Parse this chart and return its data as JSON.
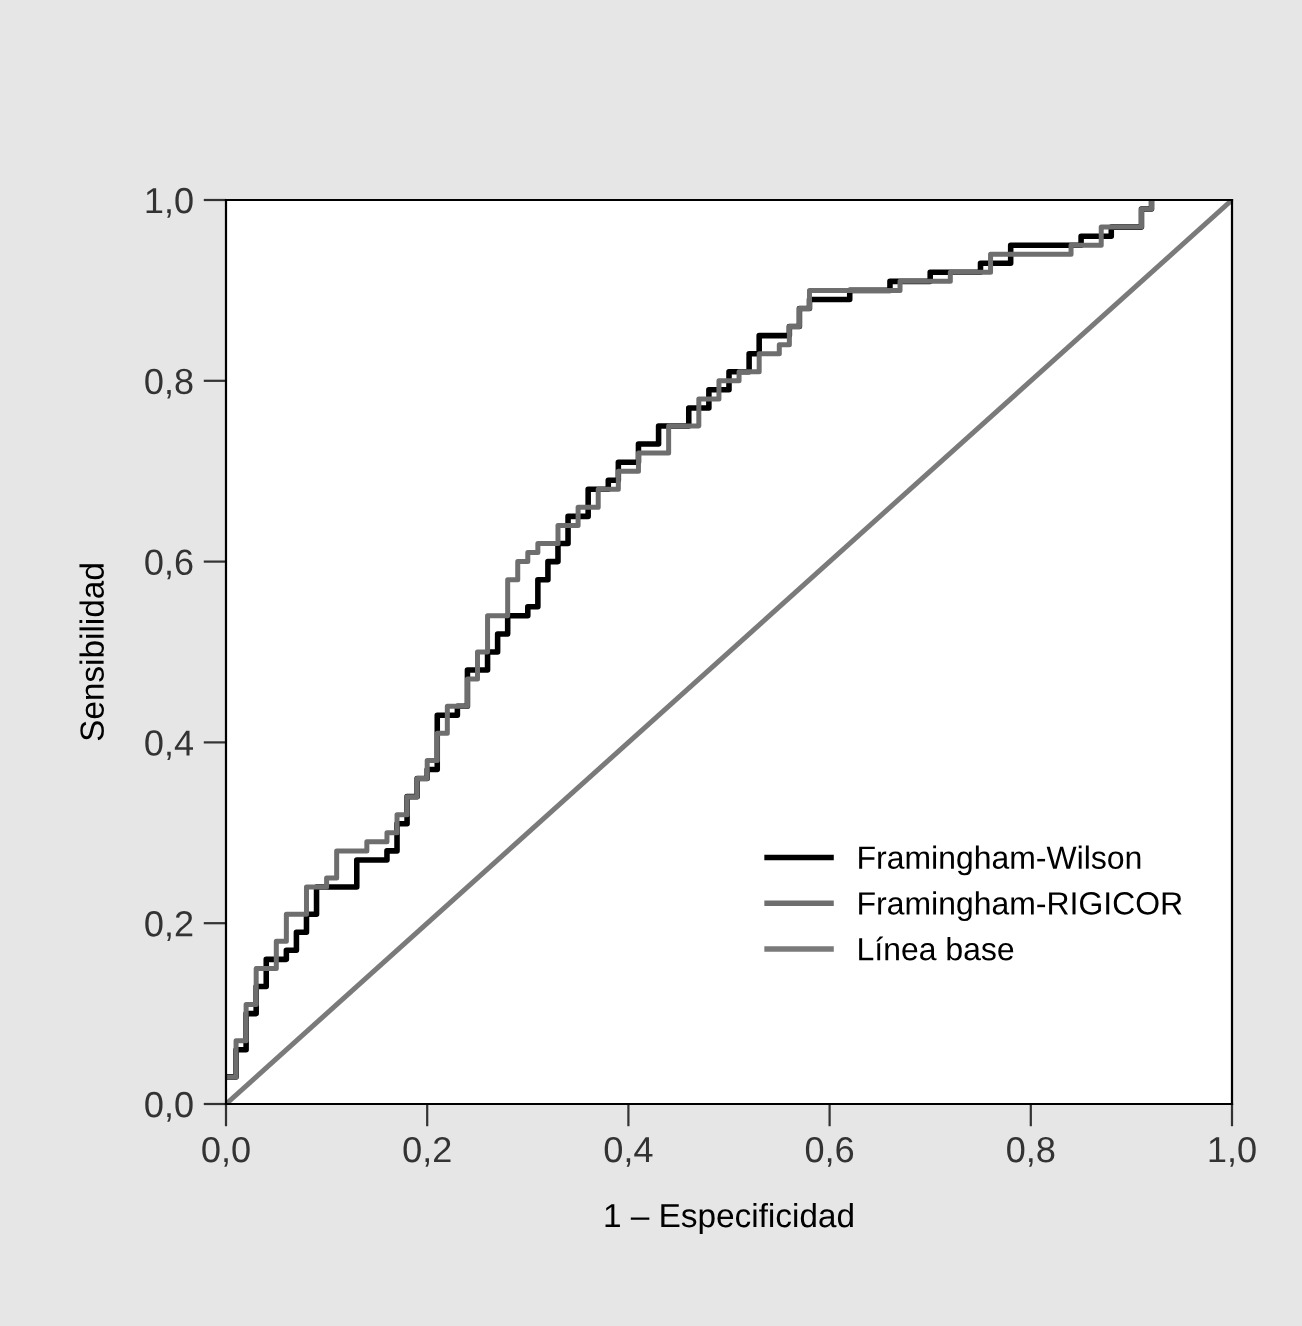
{
  "chart_data": {
    "type": "step",
    "xlabel": "1 – Especificidad",
    "ylabel": "Sensibilidad",
    "xlim": [
      0,
      1
    ],
    "ylim": [
      0,
      1
    ],
    "xticks": [
      {
        "value": 0,
        "label": "0,0"
      },
      {
        "value": 0.2,
        "label": "0,2"
      },
      {
        "value": 0.4,
        "label": "0,4"
      },
      {
        "value": 0.6,
        "label": "0,6"
      },
      {
        "value": 0.8,
        "label": "0,8"
      },
      {
        "value": 1,
        "label": "1,0"
      }
    ],
    "yticks": [
      {
        "value": 0,
        "label": "0,0"
      },
      {
        "value": 0.2,
        "label": "0,2"
      },
      {
        "value": 0.4,
        "label": "0,4"
      },
      {
        "value": 0.6,
        "label": "0,6"
      },
      {
        "value": 0.8,
        "label": "0,8"
      },
      {
        "value": 1,
        "label": "1,0"
      }
    ],
    "grid": false,
    "legend": "bottom right",
    "marker": "none",
    "line_style": "solid",
    "series": [
      {
        "name": "Framingham-Wilson",
        "color": "#000000",
        "x": [
          0,
          0.01,
          0.02,
          0.03,
          0.04,
          0.06,
          0.07,
          0.08,
          0.09,
          0.12,
          0.13,
          0.16,
          0.17,
          0.18,
          0.19,
          0.2,
          0.21,
          0.21,
          0.23,
          0.24,
          0.24,
          0.26,
          0.27,
          0.28,
          0.3,
          0.31,
          0.32,
          0.33,
          0.34,
          0.36,
          0.38,
          0.39,
          0.41,
          0.43,
          0.46,
          0.48,
          0.5,
          0.52,
          0.53,
          0.56,
          0.57,
          0.58,
          0.62,
          0.66,
          0.7,
          0.75,
          0.78,
          0.85,
          0.88,
          0.91,
          0.92
        ],
        "values": [
          0.03,
          0.06,
          0.1,
          0.13,
          0.16,
          0.17,
          0.19,
          0.21,
          0.24,
          0.24,
          0.27,
          0.28,
          0.31,
          0.34,
          0.36,
          0.37,
          0.4,
          0.43,
          0.44,
          0.45,
          0.48,
          0.5,
          0.52,
          0.54,
          0.55,
          0.58,
          0.6,
          0.62,
          0.65,
          0.68,
          0.69,
          0.71,
          0.73,
          0.75,
          0.77,
          0.79,
          0.81,
          0.83,
          0.85,
          0.86,
          0.88,
          0.89,
          0.9,
          0.91,
          0.92,
          0.93,
          0.95,
          0.96,
          0.97,
          0.99,
          1.0
        ]
      },
      {
        "name": "Framingham-RIGICOR",
        "color": "#6e6e6e",
        "x": [
          0,
          0.01,
          0.02,
          0.03,
          0.05,
          0.06,
          0.08,
          0.1,
          0.11,
          0.14,
          0.16,
          0.17,
          0.18,
          0.19,
          0.2,
          0.21,
          0.22,
          0.24,
          0.25,
          0.26,
          0.28,
          0.29,
          0.3,
          0.31,
          0.33,
          0.35,
          0.37,
          0.39,
          0.41,
          0.44,
          0.47,
          0.49,
          0.51,
          0.53,
          0.55,
          0.56,
          0.57,
          0.58,
          0.63,
          0.67,
          0.72,
          0.76,
          0.8,
          0.84,
          0.87,
          0.91,
          0.92
        ],
        "values": [
          0.03,
          0.07,
          0.11,
          0.15,
          0.18,
          0.21,
          0.24,
          0.25,
          0.28,
          0.29,
          0.3,
          0.32,
          0.34,
          0.36,
          0.38,
          0.41,
          0.44,
          0.47,
          0.5,
          0.54,
          0.58,
          0.6,
          0.61,
          0.62,
          0.64,
          0.66,
          0.68,
          0.7,
          0.72,
          0.75,
          0.78,
          0.8,
          0.81,
          0.83,
          0.84,
          0.86,
          0.88,
          0.9,
          0.9,
          0.91,
          0.92,
          0.94,
          0.94,
          0.95,
          0.97,
          0.99,
          1.0
        ]
      },
      {
        "name": "Línea base",
        "color": "#7a7a7a",
        "type": "line",
        "x": [
          0,
          1
        ],
        "values": [
          0,
          1
        ]
      }
    ]
  }
}
